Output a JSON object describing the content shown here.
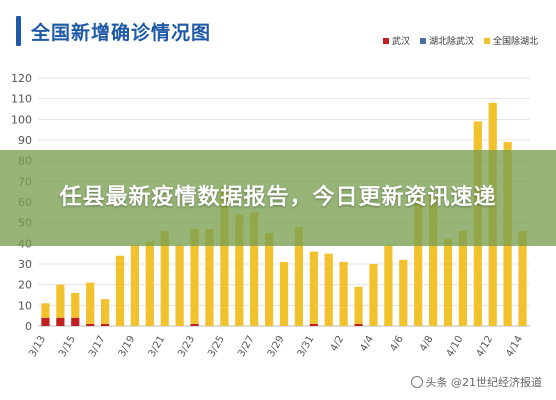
{
  "header": {
    "title": "全国新增确诊情况图"
  },
  "banner": {
    "text": "任县最新疫情数据报告，今日更新资讯速递"
  },
  "watermark": {
    "text": "头条 @21世纪经济报道"
  },
  "colors": {
    "wuhan": "#c0201f",
    "hubei_ex_wuhan": "#4a6fa5",
    "national_ex_hubei": "#f2c12e",
    "title": "#1f5aa6"
  },
  "chart_data": {
    "type": "bar",
    "stacked": true,
    "title": "全国新增确诊情况图",
    "ylim": [
      0,
      120
    ],
    "yticks": [
      0,
      10,
      20,
      30,
      40,
      50,
      60,
      70,
      80,
      90,
      100,
      110,
      120
    ],
    "grid": true,
    "legend_position": "top-right",
    "categories": [
      "3/13",
      "3/14",
      "3/15",
      "3/16",
      "3/17",
      "3/18",
      "3/19",
      "3/20",
      "3/21",
      "3/22",
      "3/23",
      "3/24",
      "3/25",
      "3/26",
      "3/27",
      "3/28",
      "3/29",
      "3/30",
      "3/31",
      "4/1",
      "4/2",
      "4/3",
      "4/4",
      "4/5",
      "4/6",
      "4/7",
      "4/8",
      "4/9",
      "4/10",
      "4/11",
      "4/12",
      "4/13",
      "4/14"
    ],
    "xtick_labels": [
      "3/13",
      "3/15",
      "3/17",
      "3/19",
      "3/21",
      "3/23",
      "3/25",
      "3/27",
      "3/29",
      "3/31",
      "4/2",
      "4/4",
      "4/6",
      "4/8",
      "4/10",
      "4/12",
      "4/14"
    ],
    "series": [
      {
        "name": "武汉",
        "values": [
          4,
          4,
          4,
          1,
          1,
          0,
          0,
          0,
          0,
          0,
          1,
          0,
          0,
          0,
          0,
          0,
          0,
          0,
          1,
          0,
          0,
          1,
          0,
          0,
          0,
          0,
          0,
          0,
          0,
          0,
          0,
          0,
          0
        ]
      },
      {
        "name": "湖北除武汉",
        "values": [
          0,
          0,
          0,
          0,
          0,
          0,
          0,
          0,
          0,
          0,
          0,
          0,
          0,
          0,
          0,
          0,
          0,
          0,
          0,
          0,
          0,
          0,
          0,
          0,
          0,
          0,
          0,
          0,
          0,
          0,
          0,
          0,
          0
        ]
      },
      {
        "name": "全国除湖北",
        "values": [
          7,
          16,
          12,
          20,
          12,
          34,
          39,
          41,
          46,
          39,
          46,
          47,
          67,
          54,
          55,
          45,
          31,
          48,
          35,
          35,
          31,
          18,
          30,
          39,
          32,
          62,
          63,
          42,
          46,
          99,
          108,
          89,
          46
        ]
      }
    ]
  }
}
